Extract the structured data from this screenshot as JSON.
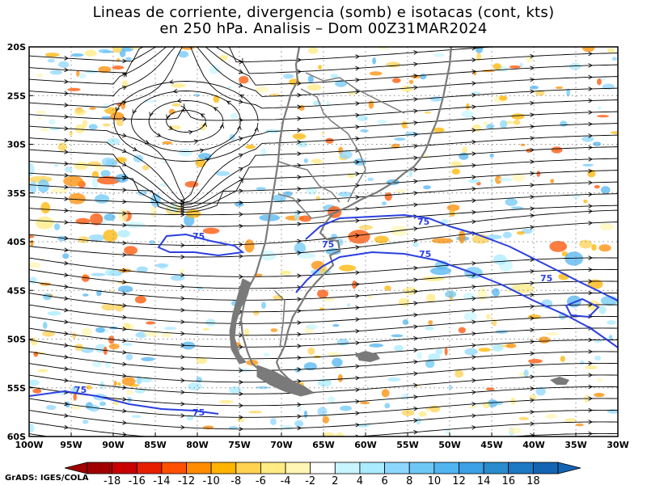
{
  "title": {
    "line1": "Lineas de corriente, divergencia (somb) e isotacas (cont, kts)",
    "line2": "en 250 hPa. Analisis – Dom 00Z31MAR2024"
  },
  "map": {
    "lon_range": [
      -100,
      -30
    ],
    "lat_range": [
      -60,
      -20
    ],
    "lat_labels": [
      "20S",
      "25S",
      "30S",
      "35S",
      "40S",
      "45S",
      "50S",
      "55S",
      "60S"
    ],
    "lon_labels": [
      "100W",
      "95W",
      "90W",
      "85W",
      "80W",
      "75W",
      "70W",
      "65W",
      "60W",
      "55W",
      "50W",
      "45W",
      "40W",
      "35W",
      "30W"
    ],
    "isotach_label": "75",
    "colors": {
      "streamline": "#000000",
      "coast": "#7a7a7a",
      "isotach": "#2b3fe0",
      "grid": "#8a8a8a"
    }
  },
  "colorbar": {
    "labels": [
      "-18",
      "-16",
      "-14",
      "-12",
      "-10",
      "-8",
      "-6",
      "-4",
      "-2",
      "2",
      "4",
      "6",
      "8",
      "10",
      "12",
      "14",
      "16",
      "18"
    ],
    "colors": [
      "#a00000",
      "#c80000",
      "#e81e00",
      "#ff5000",
      "#ff8c00",
      "#ffb400",
      "#ffd250",
      "#ffeb82",
      "#fff5b4",
      "#ffffff",
      "#c8f5ff",
      "#aaebff",
      "#8cd7ff",
      "#6ec8f5",
      "#50b4f0",
      "#3ca0e6",
      "#288ccd",
      "#1e78c3",
      "#1464b4"
    ]
  },
  "credit": "GrADS: IGES/COLA"
}
